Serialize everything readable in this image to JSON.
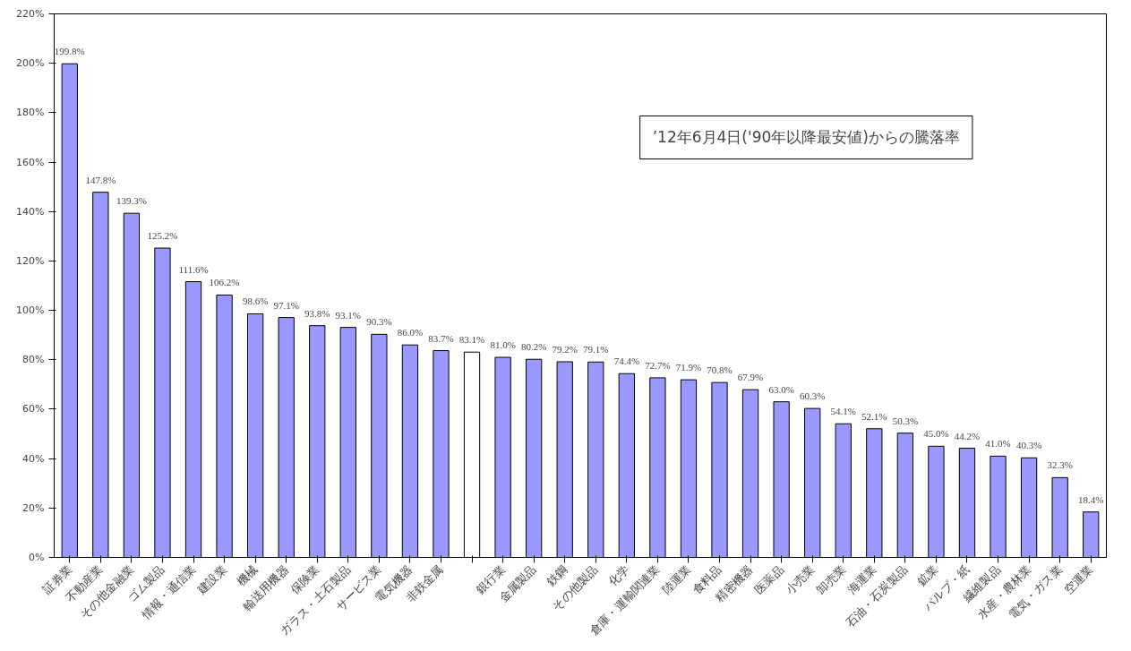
{
  "chart_data": {
    "type": "bar",
    "annotations": [
      "’12年6月4日('90年以降最安値)からの騰落率"
    ],
    "categories": [
      "証券業",
      "不動産業",
      "その他金融業",
      "ゴム製品",
      "情報・通信業",
      "建設業",
      "機械",
      "輸送用機器",
      "保険業",
      "ガラス・土石製品",
      "サービス業",
      "電気機器",
      "非鉄金属",
      null,
      "銀行業",
      "金属製品",
      "鉄鋼",
      "その他製品",
      "化学",
      "倉庫・運輸関連業",
      "陸運業",
      "食料品",
      "精密機器",
      "医薬品",
      "小売業",
      "卸売業",
      "海運業",
      "石油・石炭製品",
      "鉱業",
      "パルプ・紙",
      "繊維製品",
      "水産・農林業",
      "電気・ガス業",
      "空運業"
    ],
    "values": [
      199.8,
      147.8,
      139.3,
      125.2,
      111.6,
      106.2,
      98.6,
      97.1,
      93.8,
      93.1,
      90.3,
      86.0,
      83.7,
      83.1,
      81.0,
      80.2,
      79.2,
      79.1,
      74.4,
      72.7,
      71.9,
      70.8,
      67.9,
      63.0,
      60.3,
      54.1,
      52.1,
      50.3,
      45.0,
      44.2,
      41.0,
      40.3,
      32.3,
      18.4
    ],
    "value_labels": [
      "199.8%",
      "147.8%",
      "139.3%",
      "125.2%",
      "111.6%",
      "106.2%",
      "98.6%",
      "97.1%",
      "93.8%",
      "93.1%",
      "90.3%",
      "86.0%",
      "83.7%",
      "83.1%",
      "81.0%",
      "80.2%",
      "79.2%",
      "79.1%",
      "74.4%",
      "72.7%",
      "71.9%",
      "70.8%",
      "67.9%",
      "63.0%",
      "60.3%",
      "54.1%",
      "52.1%",
      "50.3%",
      "45.0%",
      "44.2%",
      "41.0%",
      "40.3%",
      "32.3%",
      "18.4%"
    ],
    "colors": [
      "#9999ff",
      "#9999ff",
      "#9999ff",
      "#9999ff",
      "#9999ff",
      "#9999ff",
      "#9999ff",
      "#9999ff",
      "#9999ff",
      "#9999ff",
      "#9999ff",
      "#9999ff",
      "#9999ff",
      "#ffffff",
      "#9999ff",
      "#9999ff",
      "#9999ff",
      "#9999ff",
      "#9999ff",
      "#9999ff",
      "#9999ff",
      "#9999ff",
      "#9999ff",
      "#9999ff",
      "#9999ff",
      "#9999ff",
      "#9999ff",
      "#9999ff",
      "#9999ff",
      "#9999ff",
      "#9999ff",
      "#9999ff",
      "#9999ff",
      "#9999ff"
    ],
    "ylim": [
      0,
      220
    ],
    "yticks": [
      {
        "value": 0,
        "label": "0%"
      },
      {
        "value": 20,
        "label": "20%"
      },
      {
        "value": 40,
        "label": "40%"
      },
      {
        "value": 60,
        "label": "60%"
      },
      {
        "value": 80,
        "label": "80%"
      },
      {
        "value": 100,
        "label": "100%"
      },
      {
        "value": 120,
        "label": "120%"
      },
      {
        "value": 140,
        "label": "140%"
      },
      {
        "value": 160,
        "label": "160%"
      },
      {
        "value": 180,
        "label": "180%"
      },
      {
        "value": 200,
        "label": "200%"
      },
      {
        "value": 220,
        "label": "220%"
      }
    ],
    "grid": false
  }
}
